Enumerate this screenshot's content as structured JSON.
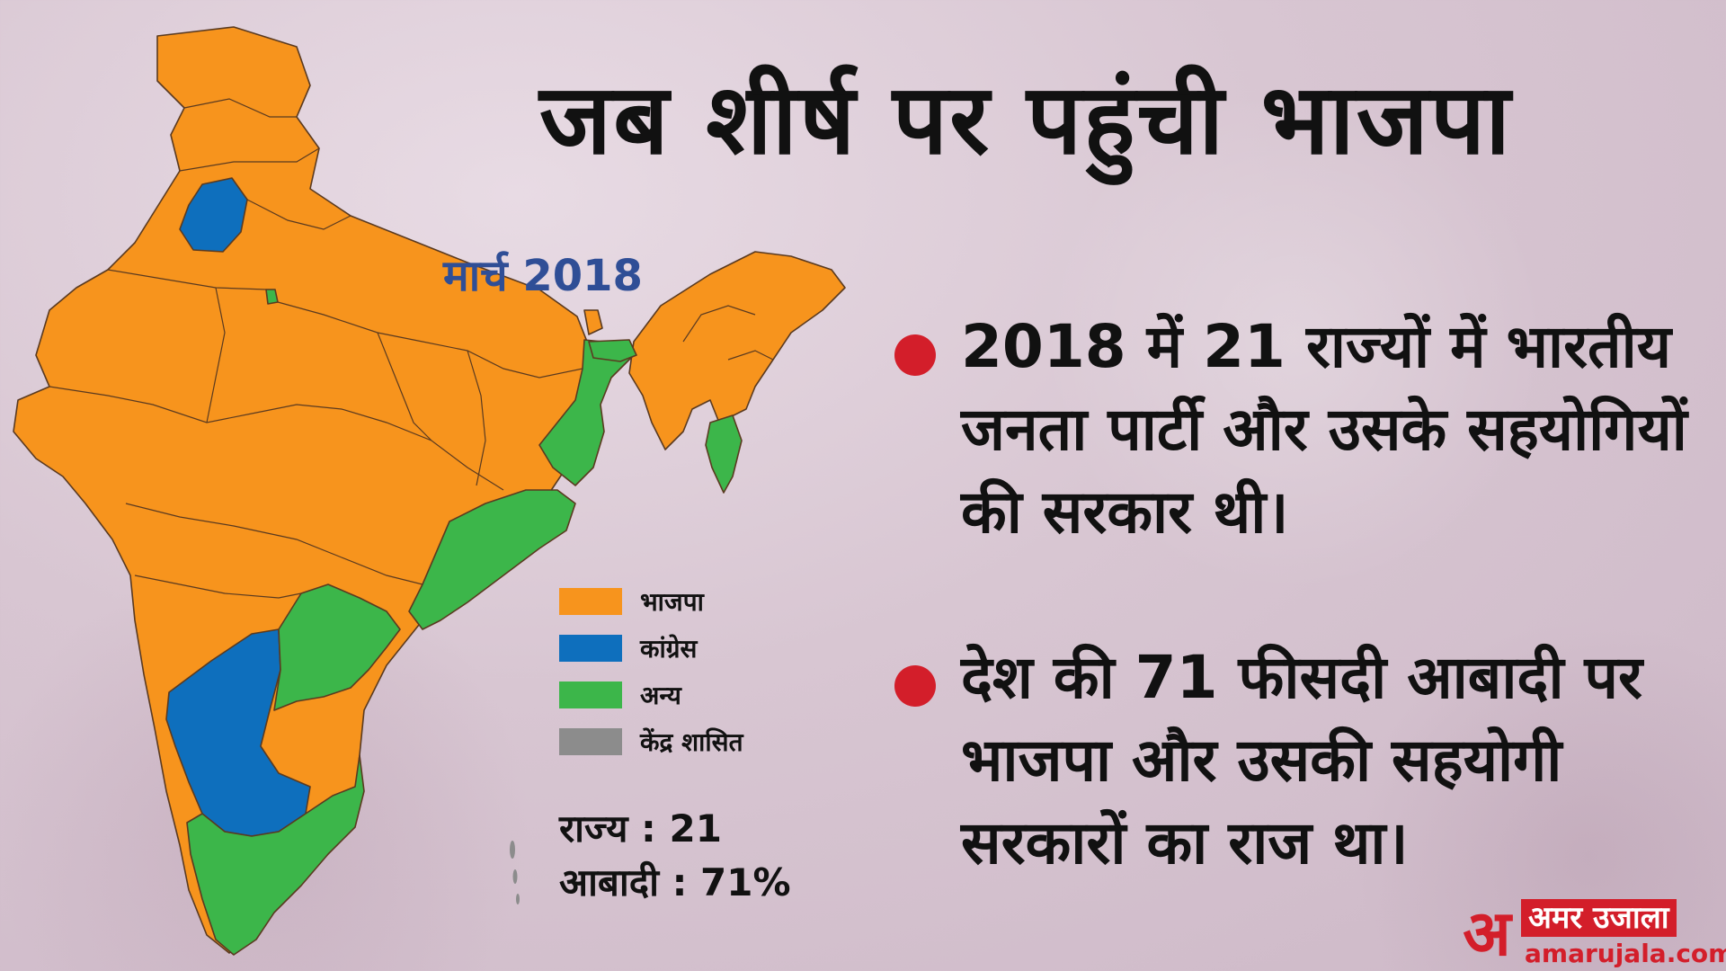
{
  "title": "जब शीर्ष पर पहुंची भाजपा",
  "map_label": "मार्च 2018",
  "legend": [
    {
      "label": "भाजपा",
      "color": "#f7941d"
    },
    {
      "label": "कांग्रेस",
      "color": "#0e6fbd"
    },
    {
      "label": "अन्य",
      "color": "#3cb64a"
    },
    {
      "label": "केंद्र शासित",
      "color": "#8c8c8c"
    }
  ],
  "stats": {
    "states": "राज्य : 21",
    "population": "आबादी : 71%"
  },
  "bullets": [
    {
      "text": "2018 में 21 राज्यों में भारतीय जनता पार्टी और उसके सहयोगियों की सरकार थी।"
    },
    {
      "text": "देश की 71 फीसदी आबादी पर भाजपा और उसकी सहयोगी सरकारों का राज था।"
    }
  ],
  "brand": {
    "mark": "अ",
    "name": "अमर उजाला",
    "url": "amarujala.com"
  },
  "colors": {
    "bjp": "#f7941d",
    "congress": "#0e6fbd",
    "others": "#3cb64a",
    "ut": "#8c8c8c",
    "accent_red": "#d31e2a",
    "label_blue": "#2f4e96"
  }
}
